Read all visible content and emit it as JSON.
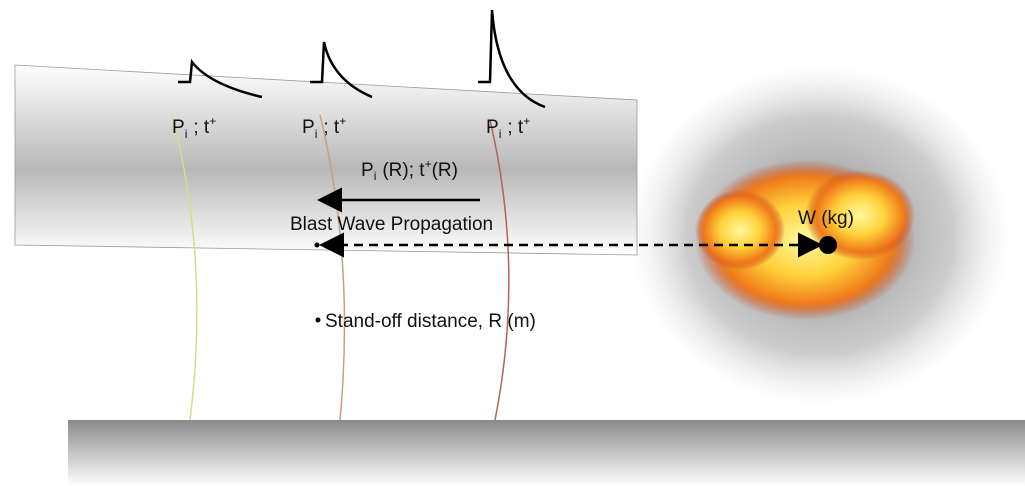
{
  "pressure_labels": [
    {
      "base": "P",
      "sub": "i",
      "mid": "; t",
      "sup": "+"
    },
    {
      "base": "P",
      "sub": "i",
      "mid": "; t",
      "sup": "+"
    },
    {
      "base": "P",
      "sub": "i",
      "mid": "; t",
      "sup": "+"
    }
  ],
  "propagation_label": {
    "base": "P",
    "sub": "i",
    "mid": "(R); t",
    "sup": "+",
    "end": "(R)"
  },
  "arrow_label": "Blast Wave Propagation",
  "charge_label": "W (kg)",
  "standoff_label": "Stand-off distance, R (m)"
}
